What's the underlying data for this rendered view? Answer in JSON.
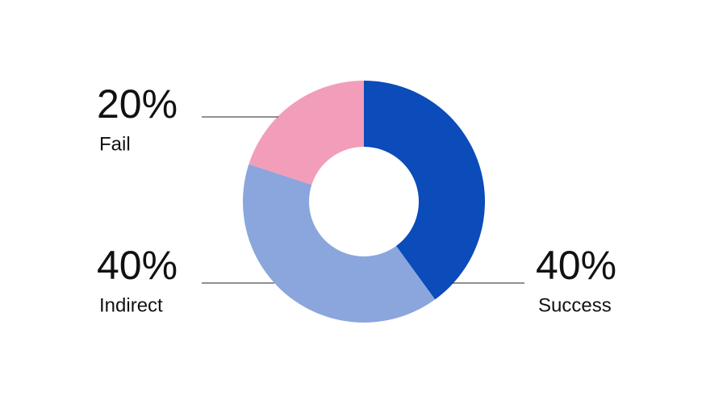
{
  "chart_data": {
    "type": "donut",
    "categories": [
      "Success",
      "Indirect",
      "Fail"
    ],
    "values": [
      40,
      40,
      20
    ],
    "value_labels": [
      "40%",
      "40%",
      "20%"
    ],
    "colors": [
      "#0b4bba",
      "#8aa6dc",
      "#f29dba"
    ]
  }
}
